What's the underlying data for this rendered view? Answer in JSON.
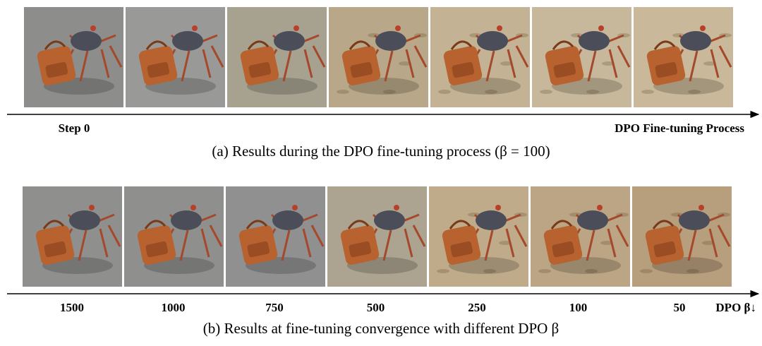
{
  "figure": {
    "row_a": {
      "start_label": "Step 0",
      "end_label": "DPO Fine-tuning Process",
      "caption": "(a)  Results during the DPO fine-tuning process (β = 100)"
    },
    "row_b": {
      "labels": [
        "1500",
        "1000",
        "750",
        "500",
        "250",
        "100",
        "50"
      ],
      "end_label": "DPO β↓",
      "caption": "(b)  Results at fine-tuning convergence with different DPO β"
    }
  }
}
